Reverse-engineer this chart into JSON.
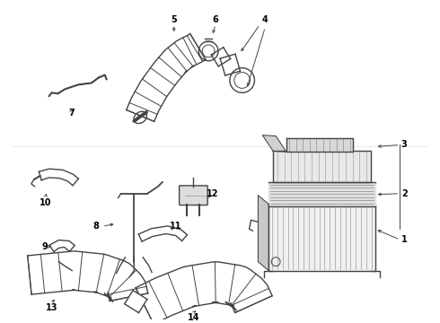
{
  "background_color": "#ffffff",
  "line_color": "#444444",
  "label_color": "#000000",
  "figsize": [
    4.9,
    3.6
  ],
  "dpi": 100
}
